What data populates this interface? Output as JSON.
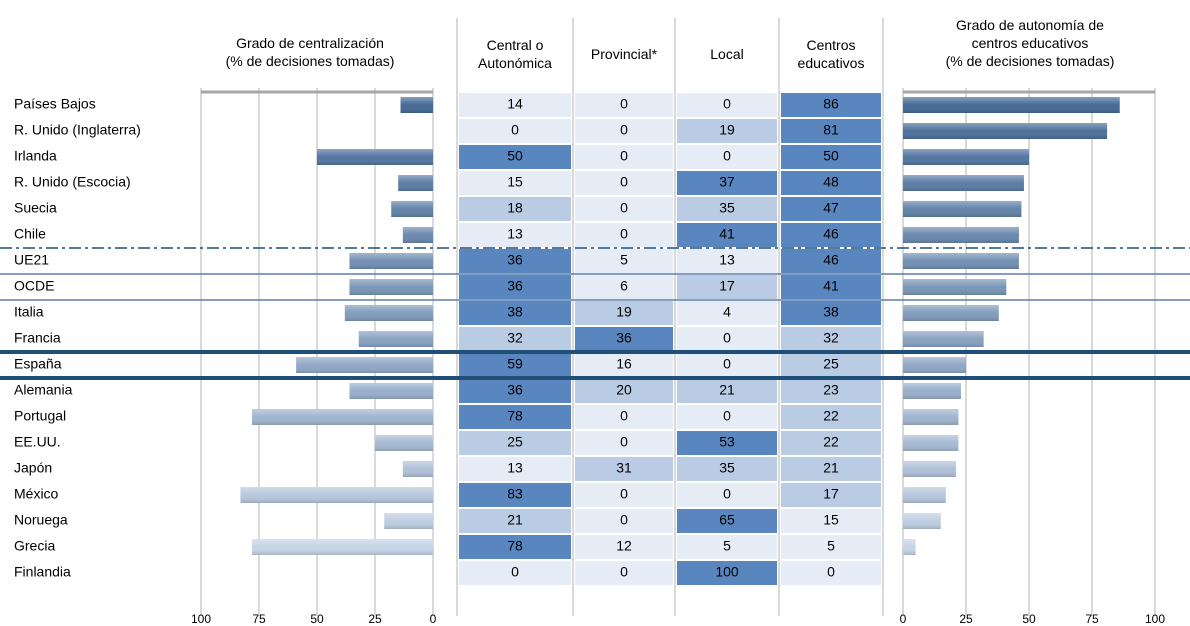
{
  "chart_data": {
    "type": "table-bars",
    "left_title": "Grado de centralización\n(% de decisiones tomadas)",
    "right_title": "Grado de autonomía de\ncentros educativos\n(% de decisiones tomadas)",
    "categories": [
      "Países Bajos",
      "R. Unido (Inglaterra)",
      "Irlanda",
      "R. Unido (Escocia)",
      "Suecia",
      "Chile",
      "UE21",
      "OCDE",
      "Italia",
      "Francia",
      "España",
      "Alemania",
      "Portugal",
      "EE.UU.",
      "Japón",
      "México",
      "Noruega",
      "Grecia",
      "Finlandia"
    ],
    "series": [
      {
        "name": "Central o\nAutonómica",
        "values": [
          14,
          0,
          50,
          15,
          18,
          13,
          36,
          36,
          38,
          32,
          59,
          36,
          78,
          25,
          13,
          83,
          21,
          78,
          0
        ]
      },
      {
        "name": "Provincial*",
        "values": [
          0,
          0,
          0,
          0,
          0,
          0,
          5,
          6,
          19,
          36,
          16,
          20,
          0,
          0,
          31,
          0,
          0,
          12,
          0
        ]
      },
      {
        "name": "Local",
        "values": [
          0,
          19,
          0,
          37,
          35,
          41,
          13,
          17,
          4,
          0,
          0,
          21,
          0,
          53,
          35,
          0,
          65,
          5,
          100
        ]
      },
      {
        "name": "Centros\neducativos",
        "values": [
          86,
          81,
          50,
          48,
          47,
          46,
          46,
          41,
          38,
          32,
          25,
          23,
          22,
          22,
          21,
          17,
          15,
          5,
          0
        ]
      }
    ],
    "left_xlim": [
      0,
      100
    ],
    "left_xticks": [
      100,
      75,
      50,
      25,
      0
    ],
    "right_xlim": [
      0,
      100
    ],
    "right_xticks": [
      0,
      25,
      50,
      75,
      100
    ]
  }
}
